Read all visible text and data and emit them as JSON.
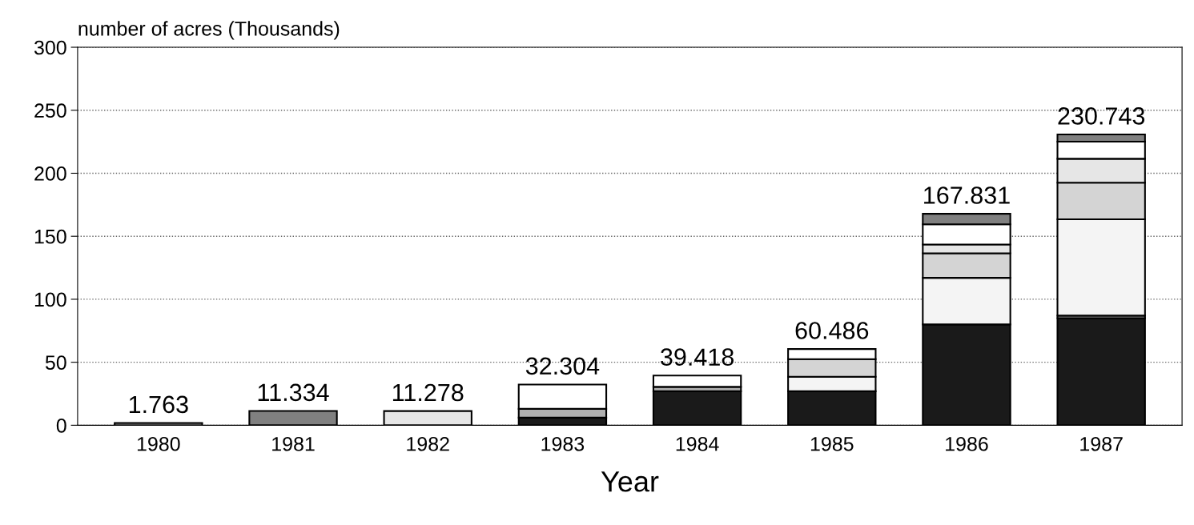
{
  "chart_data": {
    "type": "bar",
    "stacked": true,
    "ylabel": "number of acres (Thousands)",
    "xlabel": "Year",
    "categories": [
      "1980",
      "1981",
      "1982",
      "1983",
      "1984",
      "1985",
      "1986",
      "1987"
    ],
    "series": [
      {
        "color": "#1a1a1a",
        "values": [
          null,
          null,
          null,
          6,
          27,
          27,
          80,
          85
        ]
      },
      {
        "color": "#b0b0b0",
        "values": [
          null,
          null,
          null,
          7,
          3.5,
          null,
          null,
          2
        ]
      },
      {
        "color": "#f4f4f4",
        "values": [
          null,
          null,
          null,
          null,
          null,
          11.5,
          37,
          76.5
        ]
      },
      {
        "color": "#d4d4d4",
        "values": [
          null,
          null,
          null,
          null,
          null,
          14,
          19.5,
          29
        ]
      },
      {
        "color": "#e6e6e6",
        "values": [
          null,
          null,
          11.278,
          null,
          null,
          null,
          7,
          19
        ]
      },
      {
        "color": "#ffffff",
        "values": [
          1.763,
          null,
          null,
          19.304,
          8.918,
          7.986,
          16,
          13.6
        ]
      },
      {
        "color": "#808080",
        "values": [
          null,
          11.334,
          null,
          null,
          null,
          null,
          8.331,
          5.643
        ]
      }
    ],
    "totals": [
      "1.763",
      "11.334",
      "11.278",
      "32.304",
      "39.418",
      "60.486",
      "167.831",
      "230.743"
    ],
    "ylim": [
      0,
      300
    ],
    "yticks": [
      0,
      50,
      100,
      150,
      200,
      250,
      300
    ],
    "grid": "y",
    "legend": false
  }
}
